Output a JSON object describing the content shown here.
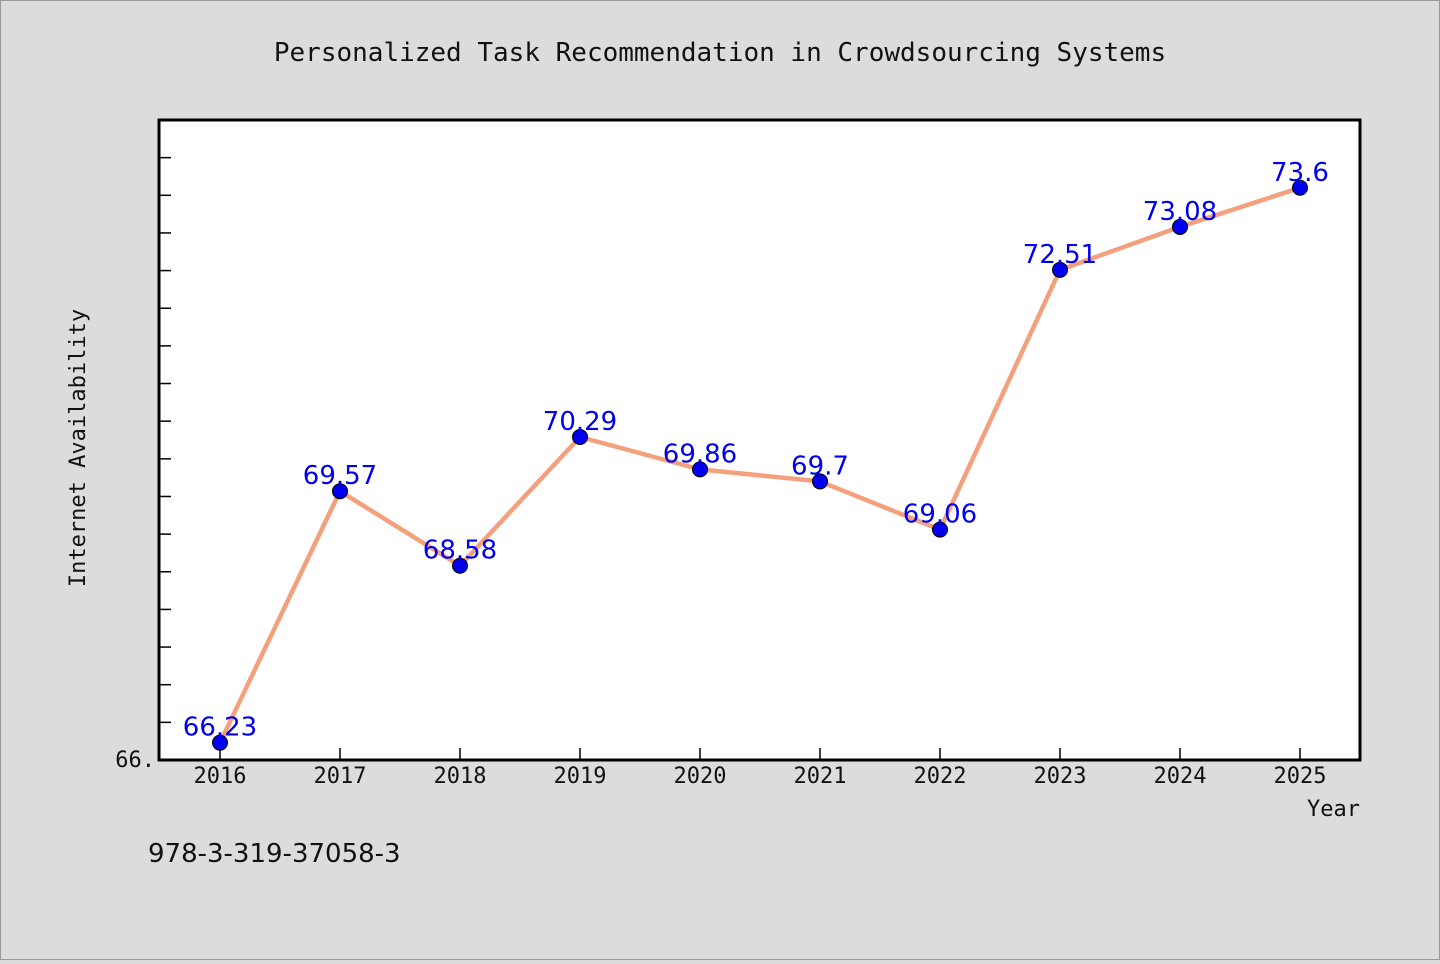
{
  "chart_data": {
    "type": "line",
    "title": "Personalized Task Recommendation in Crowdsourcing Systems",
    "xlabel": "Year",
    "ylabel": "Internet Availability",
    "categories": [
      "2016",
      "2017",
      "2018",
      "2019",
      "2020",
      "2021",
      "2022",
      "2023",
      "2024",
      "2025"
    ],
    "series": [
      {
        "values": [
          66.23,
          69.57,
          68.58,
          70.29,
          69.86,
          69.7,
          69.06,
          72.51,
          73.08,
          73.6
        ],
        "labels": [
          "66.23",
          "69.57",
          "68.58",
          "70.29",
          "69.86",
          "69.7",
          "69.06",
          "72.51",
          "73.08",
          "73.6"
        ],
        "line_color": "#f4a07c",
        "marker_color": "#0000ee"
      }
    ],
    "ylim": [
      66.0,
      74.5
    ],
    "y_tick_label": "66.",
    "grid": false,
    "legend": "none"
  },
  "footer_text": "978-3-319-37058-3",
  "colors": {
    "background": "#dcdcdc",
    "plot_background": "#ffffff",
    "axes": "#000000"
  }
}
